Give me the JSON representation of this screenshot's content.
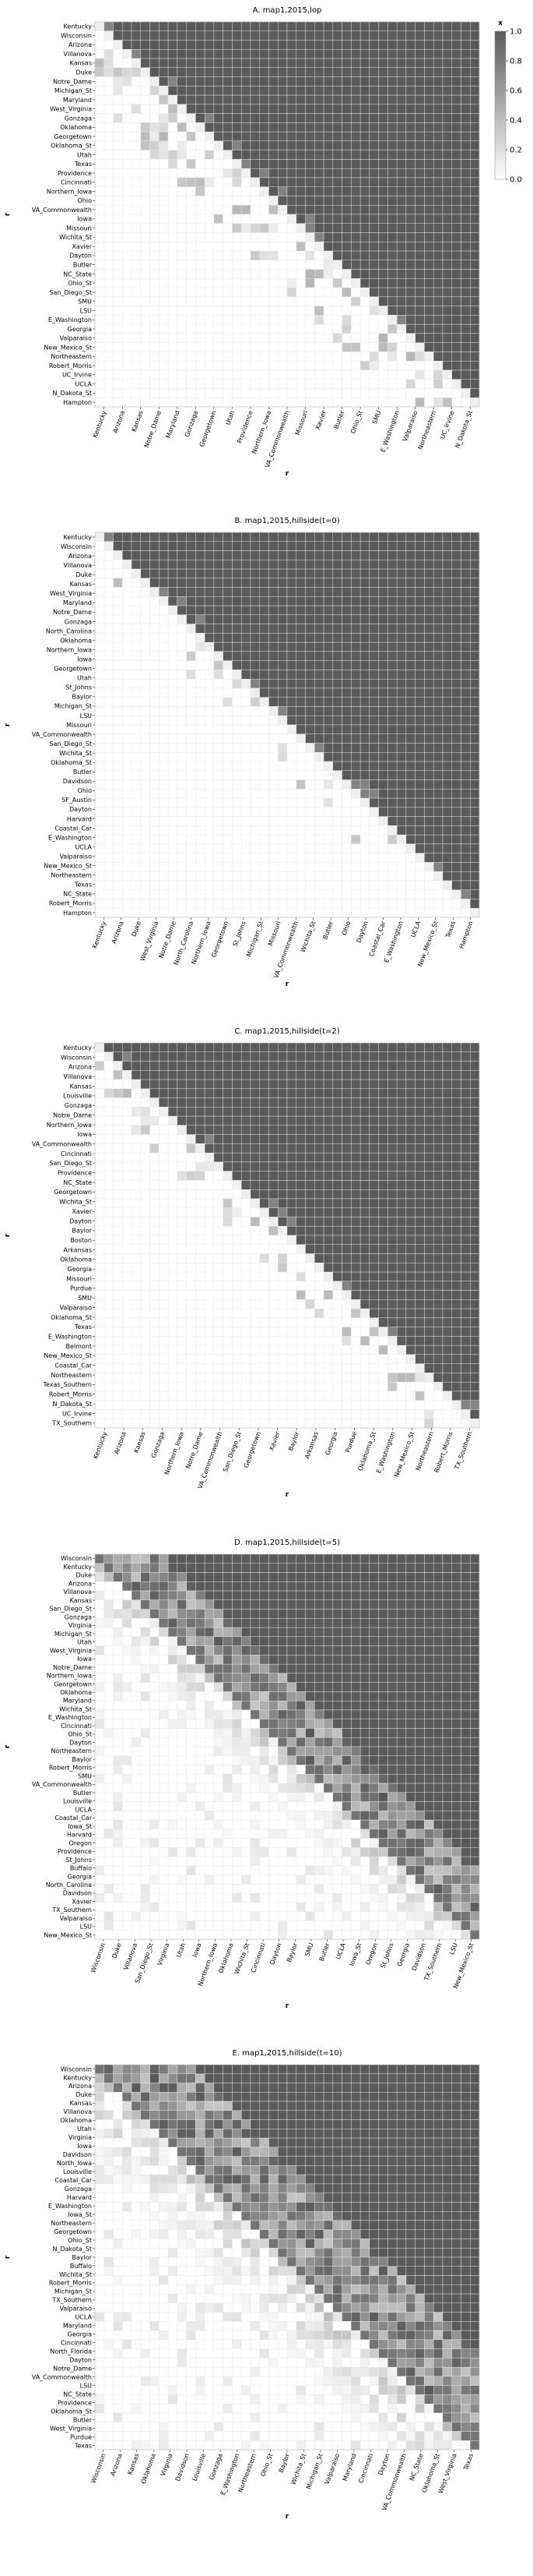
{
  "colorbar": {
    "label": "x",
    "ticks": [
      "0.0",
      "0.2",
      "0.4",
      "0.6",
      "0.8",
      "1.0"
    ],
    "tick_values": [
      0.0,
      0.2,
      0.4,
      0.6,
      0.8,
      1.0
    ],
    "range": [
      0,
      1
    ],
    "color_low": "#ffffff",
    "color_high": "#5a5a5a"
  },
  "chart_data": [
    {
      "type": "heatmap",
      "title": "A. map1,2015,lop",
      "xlabel": "r",
      "ylabel": "r",
      "pattern": "upper-triangular",
      "row_labels": [
        "Kentucky",
        "Wisconsin",
        "Arizona",
        "Villanova",
        "Kansas",
        "Duke",
        "Notre_Dame",
        "Michigan_St",
        "Maryland",
        "West_Virginia",
        "Gonzaga",
        "Oklahoma",
        "Georgetown",
        "Oklahoma_St",
        "Utah",
        "Texas",
        "Providence",
        "Cincinnati",
        "Northern_Iowa",
        "Ohio",
        "VA_Commonwealth",
        "Iowa",
        "Missouri",
        "Wichita_St",
        "Xavier",
        "Dayton",
        "Butler",
        "NC_State",
        "Ohio_St",
        "San_Diego_St",
        "SMU",
        "LSU",
        "E_Washington",
        "Georgia",
        "Valparaiso",
        "New_Mexico_St",
        "Northeastern",
        "Robert_Morris",
        "UC_Irvine",
        "UCLA",
        "N_Dakota_St",
        "Hampton"
      ],
      "col_labels": [
        "Kentucky",
        "Arizona",
        "Kansas",
        "Notre_Dame",
        "Maryland",
        "Gonzaga",
        "Georgetown",
        "Utah",
        "Providence",
        "Northern_Iowa",
        "VA_Commonwealth",
        "Missouri",
        "Xavier",
        "Butler",
        "Ohio_St",
        "SMU",
        "E_Washington",
        "Valparaiso",
        "Northeastern",
        "UC_Irvine",
        "N_Dakota_St"
      ],
      "value_scale": [
        0,
        1
      ]
    },
    {
      "type": "heatmap",
      "title": "B. map1,2015,hillside(t=0)",
      "xlabel": "r",
      "ylabel": "r",
      "pattern": "upper-triangular",
      "row_labels": [
        "Kentucky",
        "Wisconsin",
        "Arizona",
        "Villanova",
        "Duke",
        "Kansas",
        "West_Virginia",
        "Maryland",
        "Notre_Dame",
        "Gonzaga",
        "North_Carolina",
        "Oklahoma",
        "Northern_Iowa",
        "Iowa",
        "Georgetown",
        "Utah",
        "St_Johns",
        "Baylor",
        "Michigan_St",
        "LSU",
        "Missouri",
        "VA_Commonwealth",
        "San_Diego_St",
        "Wichita_St",
        "Oklahoma_St",
        "Butler",
        "Davidson",
        "Ohio",
        "SF_Austin",
        "Dayton",
        "Harvard",
        "Coastal_Car",
        "E_Washington",
        "UCLA",
        "Valparaiso",
        "New_Mexico_St",
        "Northeastern",
        "Texas",
        "NC_State",
        "Robert_Morris",
        "Hampton"
      ],
      "col_labels": [
        "Kentucky",
        "Arizona",
        "Duke",
        "West_Virginia",
        "Notre_Dame",
        "North_Carolina",
        "Northern_Iowa",
        "Georgetown",
        "St_Johns",
        "Michigan_St",
        "Missouri",
        "VA_Commonwealth",
        "Wichita_St",
        "Butler",
        "Ohio",
        "Dayton",
        "Coastal_Car",
        "E_Washington",
        "UCLA",
        "New_Mexico_St",
        "Texas",
        "Hampton"
      ],
      "value_scale": [
        0,
        1
      ]
    },
    {
      "type": "heatmap",
      "title": "C. map1,2015,hillside(t=2)",
      "xlabel": "r",
      "ylabel": "r",
      "pattern": "upper-triangular",
      "row_labels": [
        "Kentucky",
        "Wisconsin",
        "Arizona",
        "Villanova",
        "Kansas",
        "Louisville",
        "Gonzaga",
        "Notre_Dame",
        "Northern_Iowa",
        "Iowa",
        "VA_Commonwealth",
        "Cincinnati",
        "San_Diego_St",
        "Providence",
        "NC_State",
        "Georgetown",
        "Wichita_St",
        "Xavier",
        "Dayton",
        "Baylor",
        "Boston",
        "Arkansas",
        "Oklahoma",
        "Georgia",
        "Missouri",
        "Purdue",
        "SMU",
        "Valparaiso",
        "Oklahoma_St",
        "Texas",
        "E_Washington",
        "Belmont",
        "New_Mexico_St",
        "Coastal_Car",
        "Northeastern",
        "Texas_Southern",
        "Robert_Morris",
        "N_Dakota_St",
        "UC_Irvine",
        "TX_Southern"
      ],
      "col_labels": [
        "Kentucky",
        "Arizona",
        "Kansas",
        "Gonzaga",
        "Northern_Iowa",
        "Notre_Dame",
        "VA_Commonwealth",
        "San_Diego_St",
        "Georgetown",
        "Xavier",
        "Baylor",
        "Arkansas",
        "Georgia",
        "Purdue",
        "Oklahoma_St",
        "E_Washington",
        "New_Mexico_St",
        "Northeastern",
        "Robert_Morris",
        "TX_Southern"
      ],
      "value_scale": [
        0,
        1
      ]
    },
    {
      "type": "heatmap",
      "title": "D. map1,2015,hillside(t=5)",
      "xlabel": "r",
      "ylabel": "r",
      "pattern": "banded-diagonal",
      "row_labels": [
        "Wisconsin",
        "Kentucky",
        "Duke",
        "Arizona",
        "Villanova",
        "Kansas",
        "San_Diego_St",
        "Gonzaga",
        "Virginia",
        "Michigan_St",
        "Utah",
        "West_Virginia",
        "Iowa",
        "Notre_Dame",
        "Northern_Iowa",
        "Georgetown",
        "Oklahoma",
        "Maryland",
        "Wichita_St",
        "E_Washington",
        "Cincinnati",
        "Ohio_St",
        "Dayton",
        "Northeastern",
        "Baylor",
        "Robert_Morris",
        "SMU",
        "VA_Commonwealth",
        "Butler",
        "Louisville",
        "UCLA",
        "Coastal_Car",
        "Iowa_St",
        "Harvard",
        "Oregon",
        "Providence",
        "St_Johns",
        "Buffalo",
        "Georgia",
        "North_Carolina",
        "Davidson",
        "Xavier",
        "TX_Southern",
        "Valparaiso",
        "LSU",
        "New_Mexico_St"
      ],
      "col_labels": [
        "Wisconsin",
        "Duke",
        "Villanova",
        "San_Diego_St",
        "Virginia",
        "Utah",
        "Iowa",
        "Northern_Iowa",
        "Oklahoma",
        "Wichita_St",
        "Cincinnati",
        "Dayton",
        "Baylor",
        "SMU",
        "Butler",
        "UCLA",
        "Iowa_St",
        "Oregon",
        "St_Johns",
        "Georgia",
        "Davidson",
        "TX_Southern",
        "LSU",
        "New_Mexico_St"
      ],
      "value_scale": [
        0,
        1
      ]
    },
    {
      "type": "heatmap",
      "title": "E. map1,2015,hillside(t=10)",
      "xlabel": "r",
      "ylabel": "r",
      "pattern": "banded-diagonal",
      "row_labels": [
        "Wisconsin",
        "Kentucky",
        "Arizona",
        "Duke",
        "Kansas",
        "Villanova",
        "Oklahoma",
        "Utah",
        "Virginia",
        "Iowa",
        "Davidson",
        "North_Iowa",
        "Louisville",
        "Coastal_Car",
        "Gonzaga",
        "Harvard",
        "E_Washington",
        "Iowa_St",
        "Northeastern",
        "Georgetown",
        "Ohio_St",
        "N_Dakota_St",
        "Baylor",
        "Buffalo",
        "Wichita_St",
        "Robert_Morris",
        "Michigan_St",
        "TX_Southern",
        "Valparaiso",
        "UCLA",
        "Maryland",
        "Georgia",
        "Cincinnati",
        "North_Florida",
        "Dayton",
        "Notre_Dame",
        "VA_Commonwealth",
        "LSU",
        "NC_State",
        "Providence",
        "Oklahoma_St",
        "Butler",
        "West_Virginia",
        "Purdue",
        "Texas"
      ],
      "col_labels": [
        "Wisconsin",
        "Arizona",
        "Kansas",
        "Oklahoma",
        "Virginia",
        "Davidson",
        "Louisville",
        "Gonzaga",
        "E_Washington",
        "Northeastern",
        "Ohio_St",
        "Baylor",
        "Wichita_St",
        "Michigan_St",
        "Valparaiso",
        "Maryland",
        "Cincinnati",
        "Dayton",
        "VA_Commonwealth",
        "NC_State",
        "Oklahoma_St",
        "West_Virginia",
        "Texas"
      ],
      "value_scale": [
        0,
        1
      ]
    }
  ]
}
